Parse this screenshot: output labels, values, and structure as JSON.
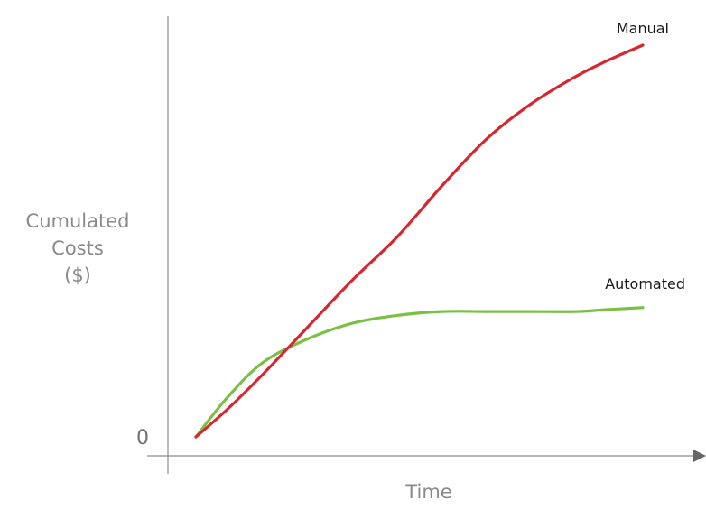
{
  "chart_data": {
    "type": "line",
    "title": "",
    "ylabel_lines": [
      "Cumulated",
      "Costs",
      "($)"
    ],
    "xlabel": "Time",
    "origin_tick_label": "0",
    "x_ticks_shown": false,
    "grid": false,
    "legend": "inline labels at line ends",
    "xlim": [
      0,
      1
    ],
    "ylim": [
      0,
      1
    ],
    "series": [
      {
        "name": "Automated",
        "color": "#7ac143",
        "x": [
          0.0,
          0.07,
          0.15,
          0.25,
          0.35,
          0.45,
          0.55,
          0.65,
          0.75,
          0.85,
          0.92,
          1.0
        ],
        "y": [
          0.0,
          0.1,
          0.19,
          0.25,
          0.29,
          0.31,
          0.32,
          0.32,
          0.32,
          0.32,
          0.325,
          0.33
        ]
      },
      {
        "name": "Manual",
        "color": "#d8262f",
        "x": [
          0.0,
          0.07,
          0.15,
          0.25,
          0.35,
          0.45,
          0.55,
          0.65,
          0.75,
          0.85,
          0.92,
          1.0
        ],
        "y": [
          0.0,
          0.07,
          0.16,
          0.28,
          0.4,
          0.51,
          0.64,
          0.76,
          0.85,
          0.92,
          0.96,
          1.0
        ]
      }
    ]
  }
}
